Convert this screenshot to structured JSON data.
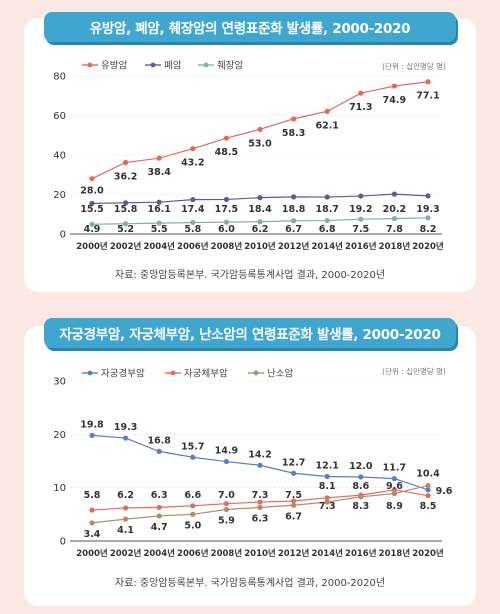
{
  "chart_data": [
    {
      "type": "line",
      "title": "유방암, 폐암, 췌장암의 연령표준화 발생률, 2000-2020",
      "unit_note": "(단위 : 십만명당 명)",
      "source": "자료: 중앙암등록본부. 국가암등록통계사업 결과, 2000-2020년",
      "categories": [
        "2000년",
        "2002년",
        "2004년",
        "2006년",
        "2008년",
        "2010년",
        "2012년",
        "2014년",
        "2016년",
        "2018년",
        "2020년"
      ],
      "ylim": [
        0,
        80
      ],
      "yticks": [
        0,
        20,
        40,
        60,
        80
      ],
      "legend_position": "top-left",
      "series": [
        {
          "name": "유방암",
          "color": "#e8665a",
          "values": [
            28.0,
            36.2,
            38.4,
            43.2,
            48.5,
            53.0,
            58.3,
            62.1,
            71.3,
            74.9,
            77.1
          ],
          "labels": [
            "28.0",
            "36.2",
            "38.4",
            "43.2",
            "48.5",
            "53.0",
            "58.3",
            "62.1",
            "71.3",
            "74.9",
            "77.1"
          ]
        },
        {
          "name": "폐암",
          "color": "#5c5a9e",
          "values": [
            15.5,
            15.8,
            16.1,
            17.4,
            17.5,
            18.4,
            18.8,
            18.7,
            19.2,
            20.2,
            19.3
          ],
          "labels": [
            "15.5",
            "15.8",
            "16.1",
            "17.4",
            "17.5",
            "18.4",
            "18.8",
            "18.7",
            "19.2",
            "20.2",
            "19.3"
          ]
        },
        {
          "name": "췌장암",
          "color": "#7fb0ae",
          "values": [
            4.9,
            5.2,
            5.5,
            5.8,
            6.0,
            6.2,
            6.7,
            6.8,
            7.5,
            7.8,
            8.2
          ],
          "labels": [
            "4.9",
            "5.2",
            "5.5",
            "5.8",
            "6.0",
            "6.2",
            "6.7",
            "6.8",
            "7.5",
            "7.8",
            "8.2"
          ]
        }
      ]
    },
    {
      "type": "line",
      "title": "자궁경부암, 자궁체부암, 난소암의 연령표준화 발생률, 2000-2020",
      "unit_note": "(단위 : 십만명당 명)",
      "source": "자료: 중앙암등록본부. 국가암등록통계사업 결과, 2000-2020년",
      "categories": [
        "2000년",
        "2002년",
        "2004년",
        "2006년",
        "2008년",
        "2010년",
        "2012년",
        "2014년",
        "2016년",
        "2018년",
        "2020년"
      ],
      "ylim": [
        0,
        30
      ],
      "yticks": [
        0,
        10,
        20,
        30
      ],
      "legend_position": "top-left",
      "series": [
        {
          "name": "자궁경부암",
          "color": "#5b7ec4",
          "values": [
            19.8,
            19.3,
            16.8,
            15.7,
            14.9,
            14.2,
            12.7,
            12.1,
            12.0,
            11.7,
            9.6
          ],
          "labels": [
            "19.8",
            "19.3",
            "16.8",
            "15.7",
            "14.9",
            "14.2",
            "12.7",
            "12.1",
            "12.0",
            "11.7",
            "9.6"
          ]
        },
        {
          "name": "자궁체부암",
          "color": "#e36a5d",
          "values": [
            5.8,
            6.2,
            6.3,
            6.6,
            7.0,
            7.3,
            7.5,
            8.1,
            8.6,
            9.6,
            8.5
          ],
          "labels": [
            "5.8",
            "6.2",
            "6.3",
            "6.6",
            "7.0",
            "7.3",
            "7.5",
            "8.1",
            "8.6",
            "9.6",
            "8.5"
          ]
        },
        {
          "name": "난소암",
          "color": "#b88a62",
          "values": [
            3.4,
            4.1,
            4.7,
            5.0,
            5.9,
            6.3,
            6.7,
            7.3,
            8.3,
            8.9,
            10.4
          ],
          "labels": [
            "3.4",
            "4.1",
            "4.7",
            "5.0",
            "5.9",
            "6.3",
            "6.7",
            "7.3",
            "8.3",
            "8.9",
            "10.4"
          ]
        }
      ]
    }
  ]
}
